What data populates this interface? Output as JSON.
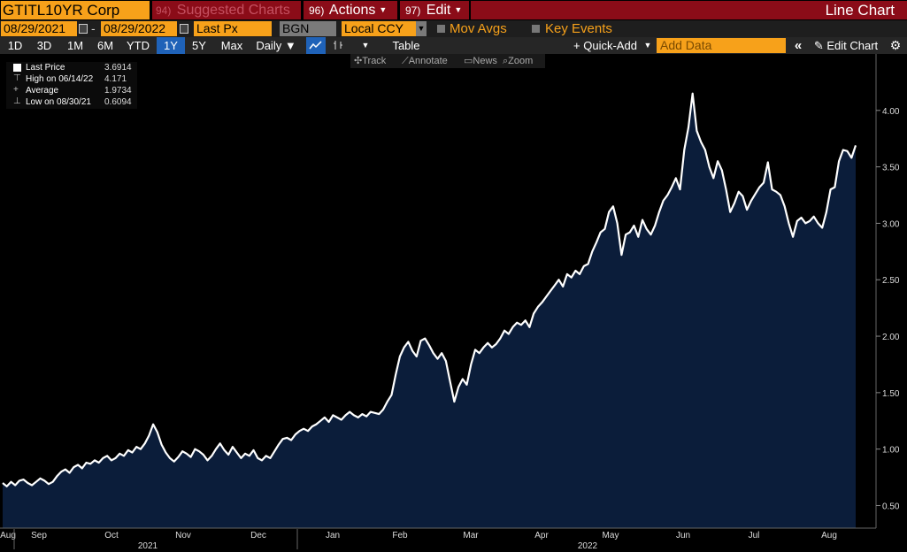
{
  "topbar": {
    "ticker": "GTITL10YR Corp",
    "suggested": {
      "num": "94)",
      "label": "Suggested Charts"
    },
    "actions": {
      "num": "96)",
      "label": "Actions"
    },
    "edit": {
      "num": "97)",
      "label": "Edit"
    },
    "chart_type": "Line Chart"
  },
  "settings": {
    "start_date": "08/29/2021",
    "end_date": "08/29/2022",
    "dash": "-",
    "field": "Last Px",
    "source": "BGN",
    "currency": "Local CCY",
    "mov_avgs": "Mov Avgs",
    "key_events": "Key Events"
  },
  "range_bar": {
    "ranges": [
      "1D",
      "3D",
      "1M",
      "6M",
      "YTD",
      "1Y",
      "5Y",
      "Max"
    ],
    "selected": "1Y",
    "frequency": "Daily ▼",
    "table": "Table",
    "quick_add": "+ Quick-Add",
    "add_data_placeholder": "Add Data",
    "edit_chart": "Edit Chart"
  },
  "chart_toolbar": {
    "track": "Track",
    "annotate": "Annotate",
    "news": "News",
    "zoom": "Zoom"
  },
  "legend": [
    {
      "name": "Last Price",
      "value": "3.6914"
    },
    {
      "name": "High on 06/14/22",
      "value": "4.171"
    },
    {
      "name": "Average",
      "value": "1.9734"
    },
    {
      "name": "Low on 08/30/21",
      "value": "0.6094"
    }
  ],
  "colors": {
    "accent": "#f7a11a",
    "red_bar": "#8b0c18",
    "area_fill": "#0b1d3a",
    "line": "#ffffff",
    "selected": "#1f62b8"
  },
  "chart_data": {
    "type": "area",
    "ylim": [
      0.3,
      4.5
    ],
    "yticks": [
      0.5,
      1.0,
      1.5,
      2.0,
      2.5,
      3.0,
      3.5,
      4.0
    ],
    "ytick_labels": [
      "0.50",
      "1.00",
      "1.50",
      "2.00",
      "2.50",
      "3.00",
      "3.50",
      "4.00"
    ],
    "xticks": [
      "Aug",
      "Sep",
      "Oct",
      "Nov",
      "Dec",
      "Jan",
      "Feb",
      "Mar",
      "Apr",
      "May",
      "Jun",
      "Jul",
      "Aug"
    ],
    "years": [
      "2021",
      "2022"
    ],
    "series": [
      {
        "values": [
          0.7,
          0.67,
          0.71,
          0.68,
          0.72,
          0.73,
          0.7,
          0.68,
          0.71,
          0.74,
          0.72,
          0.69,
          0.71,
          0.76,
          0.8,
          0.82,
          0.79,
          0.84,
          0.86,
          0.83,
          0.88,
          0.87,
          0.9,
          0.88,
          0.92,
          0.94,
          0.9,
          0.92,
          0.96,
          0.94,
          0.99,
          0.97,
          1.02,
          1.0,
          1.05,
          1.12,
          1.22,
          1.15,
          1.04,
          0.97,
          0.92,
          0.89,
          0.93,
          0.98,
          0.96,
          0.93,
          1.0,
          0.98,
          0.95,
          0.9,
          0.94,
          1.0,
          1.05,
          0.99,
          0.95,
          1.02,
          0.97,
          0.92,
          0.96,
          0.94,
          0.99,
          0.92,
          0.9,
          0.94,
          0.92,
          0.98,
          1.04,
          1.09,
          1.1,
          1.08,
          1.13,
          1.16,
          1.18,
          1.16,
          1.2,
          1.22,
          1.25,
          1.28,
          1.24,
          1.3,
          1.28,
          1.26,
          1.3,
          1.33,
          1.3,
          1.28,
          1.31,
          1.29,
          1.33,
          1.32,
          1.31,
          1.35,
          1.42,
          1.48,
          1.66,
          1.82,
          1.9,
          1.95,
          1.87,
          1.82,
          1.96,
          1.98,
          1.92,
          1.85,
          1.8,
          1.85,
          1.78,
          1.6,
          1.42,
          1.55,
          1.62,
          1.57,
          1.75,
          1.88,
          1.85,
          1.9,
          1.94,
          1.9,
          1.93,
          1.98,
          2.05,
          2.02,
          2.08,
          2.12,
          2.1,
          2.14,
          2.08,
          2.2,
          2.26,
          2.3,
          2.35,
          2.4,
          2.45,
          2.5,
          2.44,
          2.55,
          2.52,
          2.58,
          2.55,
          2.62,
          2.64,
          2.75,
          2.83,
          2.92,
          2.95,
          3.1,
          3.15,
          3.0,
          2.72,
          2.9,
          2.92,
          2.98,
          2.88,
          3.03,
          2.95,
          2.9,
          2.98,
          3.1,
          3.2,
          3.25,
          3.32,
          3.4,
          3.3,
          3.65,
          3.85,
          4.15,
          3.82,
          3.72,
          3.65,
          3.5,
          3.4,
          3.55,
          3.47,
          3.3,
          3.1,
          3.18,
          3.28,
          3.24,
          3.12,
          3.2,
          3.26,
          3.32,
          3.36,
          3.54,
          3.3,
          3.28,
          3.25,
          3.15,
          3.0,
          2.88,
          3.02,
          3.05,
          3.0,
          3.02,
          3.06,
          3.0,
          2.96,
          3.1,
          3.3,
          3.32,
          3.55,
          3.65,
          3.64,
          3.58,
          3.69
        ]
      }
    ]
  }
}
